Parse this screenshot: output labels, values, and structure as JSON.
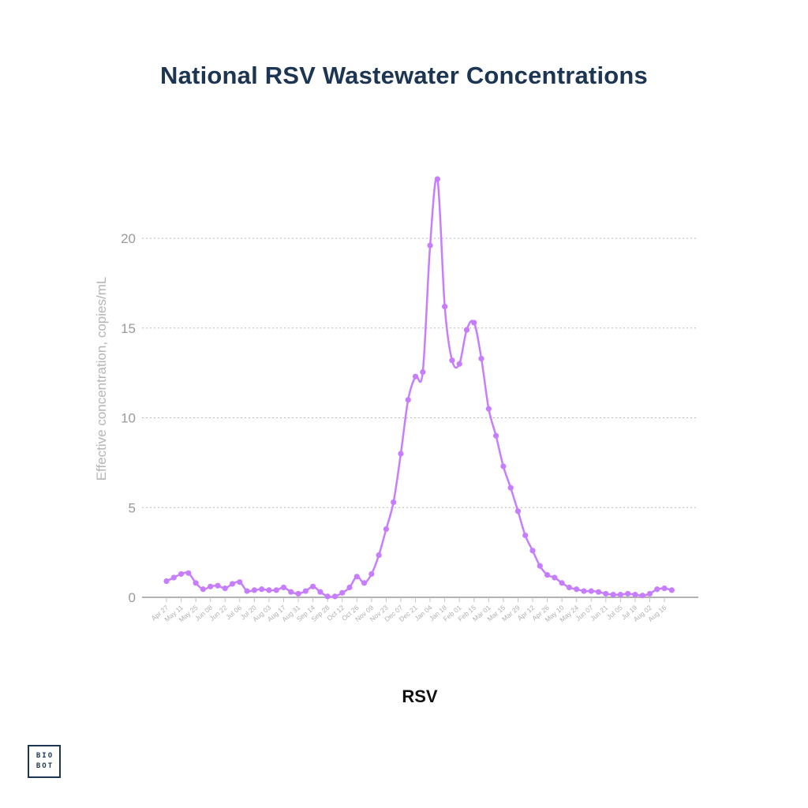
{
  "page": {
    "title": "National RSV Wastewater Concentrations"
  },
  "chart_data": {
    "type": "line",
    "title": "National RSV Wastewater Concentrations",
    "xlabel": "",
    "ylabel": "Effective concentration, copies/mL",
    "ylim": [
      0,
      24
    ],
    "yticks": [
      0,
      5,
      10,
      15,
      20
    ],
    "grid": true,
    "legend": "RSV",
    "series_color": "#c77dff",
    "x_tick_labels": [
      "Apr 27",
      "May 11",
      "May 25",
      "Jun 08",
      "Jun 22",
      "Jul 06",
      "Jul 20",
      "Aug 03",
      "Aug 17",
      "Aug 31",
      "Sep 14",
      "Sep 28",
      "Oct 12",
      "Oct 26",
      "Nov 09",
      "Nov 23",
      "Dec 07",
      "Dec 21",
      "Jan 04",
      "Jan 18",
      "Feb 01",
      "Feb 15",
      "Mar 01",
      "Mar 15",
      "Mar 29",
      "Apr 12",
      "Apr 26",
      "May 10",
      "May 24",
      "Jun 07",
      "Jun 21",
      "Jul 05",
      "Jul 19",
      "Aug 02",
      "Aug 16"
    ],
    "series": [
      {
        "name": "RSV",
        "values": [
          0.9,
          1.1,
          1.3,
          1.35,
          0.8,
          0.45,
          0.6,
          0.65,
          0.5,
          0.75,
          0.85,
          0.35,
          0.4,
          0.45,
          0.4,
          0.4,
          0.55,
          0.3,
          0.2,
          0.35,
          0.6,
          0.3,
          0.05,
          0.05,
          0.25,
          0.55,
          1.15,
          0.8,
          1.3,
          2.35,
          3.8,
          5.3,
          8.0,
          11.0,
          12.3,
          12.55,
          19.6,
          23.3,
          16.2,
          13.2,
          13.0,
          14.9,
          15.3,
          13.3,
          10.5,
          9.0,
          7.3,
          6.1,
          4.8,
          3.45,
          2.6,
          1.75,
          1.25,
          1.1,
          0.8,
          0.55,
          0.45,
          0.35,
          0.35,
          0.3,
          0.2,
          0.15,
          0.15,
          0.2,
          0.15,
          0.1,
          0.2,
          0.45,
          0.5,
          0.4
        ]
      }
    ]
  },
  "logo": {
    "line1": "BIO",
    "line2": "BOT"
  }
}
